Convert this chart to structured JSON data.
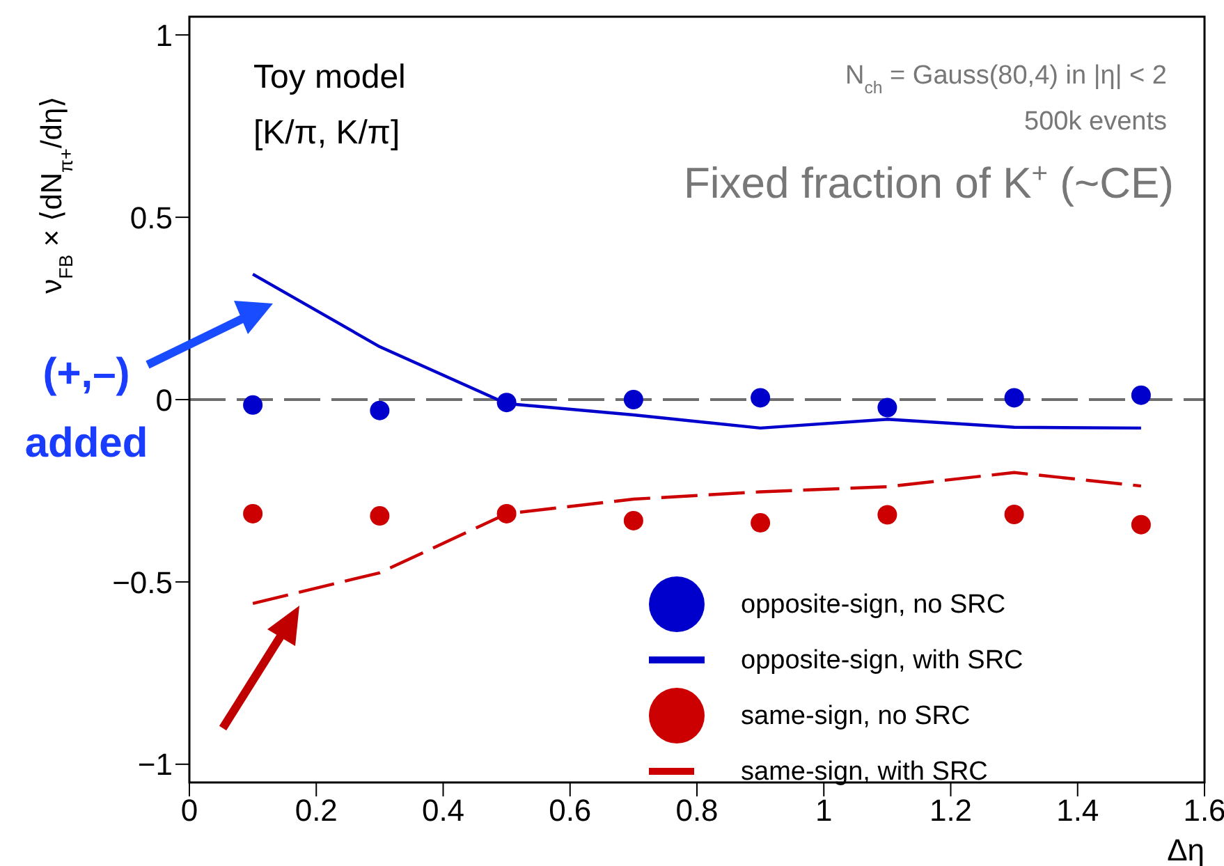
{
  "chart_data": {
    "type": "line",
    "xlabel": "Δη",
    "ylabel": "ν$_{FB}$ × ⟨dN$_{π+}$/dη⟩",
    "x": [
      0.1,
      0.3,
      0.5,
      0.7,
      0.9,
      1.1,
      1.3,
      1.5
    ],
    "series": [
      {
        "name": "same-sign, no SRC",
        "type": "scatter",
        "marker": "circle",
        "color": "#cc0000",
        "values": [
          -0.313,
          -0.319,
          -0.313,
          -0.332,
          -0.338,
          -0.316,
          -0.315,
          -0.343
        ]
      },
      {
        "name": "opposite-sign, no SRC",
        "type": "scatter",
        "marker": "circle",
        "color": "#0000cc",
        "values": [
          -0.015,
          -0.03,
          -0.008,
          0.0,
          0.005,
          -0.022,
          0.005,
          0.012
        ]
      },
      {
        "name": "same-sign, with SRC",
        "type": "line",
        "line_style": "dashed",
        "color": "#cc0000",
        "values": [
          -0.559,
          -0.475,
          -0.313,
          -0.273,
          -0.253,
          -0.239,
          -0.2,
          -0.237
        ]
      },
      {
        "name": "opposite-sign, with SRC",
        "type": "line",
        "line_style": "solid",
        "color": "#0000cc",
        "values": [
          0.344,
          0.145,
          -0.011,
          -0.042,
          -0.078,
          -0.054,
          -0.076,
          -0.078
        ]
      }
    ],
    "xlim": [
      0,
      1.6
    ],
    "xticks": [
      0,
      0.2,
      0.4,
      0.6,
      0.8,
      1,
      1.2,
      1.4,
      1.6
    ],
    "ylim": [
      -1.05,
      1.05
    ],
    "yticks": [
      {
        "value": -1,
        "label": "−1"
      },
      {
        "value": -0.5,
        "label": "−0.5"
      },
      0,
      0.5,
      1
    ],
    "ref_lines": [
      {
        "axis": "y",
        "value": 0,
        "color": "#6e6e6e",
        "line_style": "dashed"
      }
    ],
    "annotations": [
      "Toy model",
      "[K/π, K/π]",
      "N$_{ch}$ = Gauss(80,4) in |η| < 2",
      "500k events",
      "Fixed fraction of K$^{+}$ (~CE)",
      "(+,–) added"
    ],
    "grid": false,
    "legend": "bottom right"
  }
}
